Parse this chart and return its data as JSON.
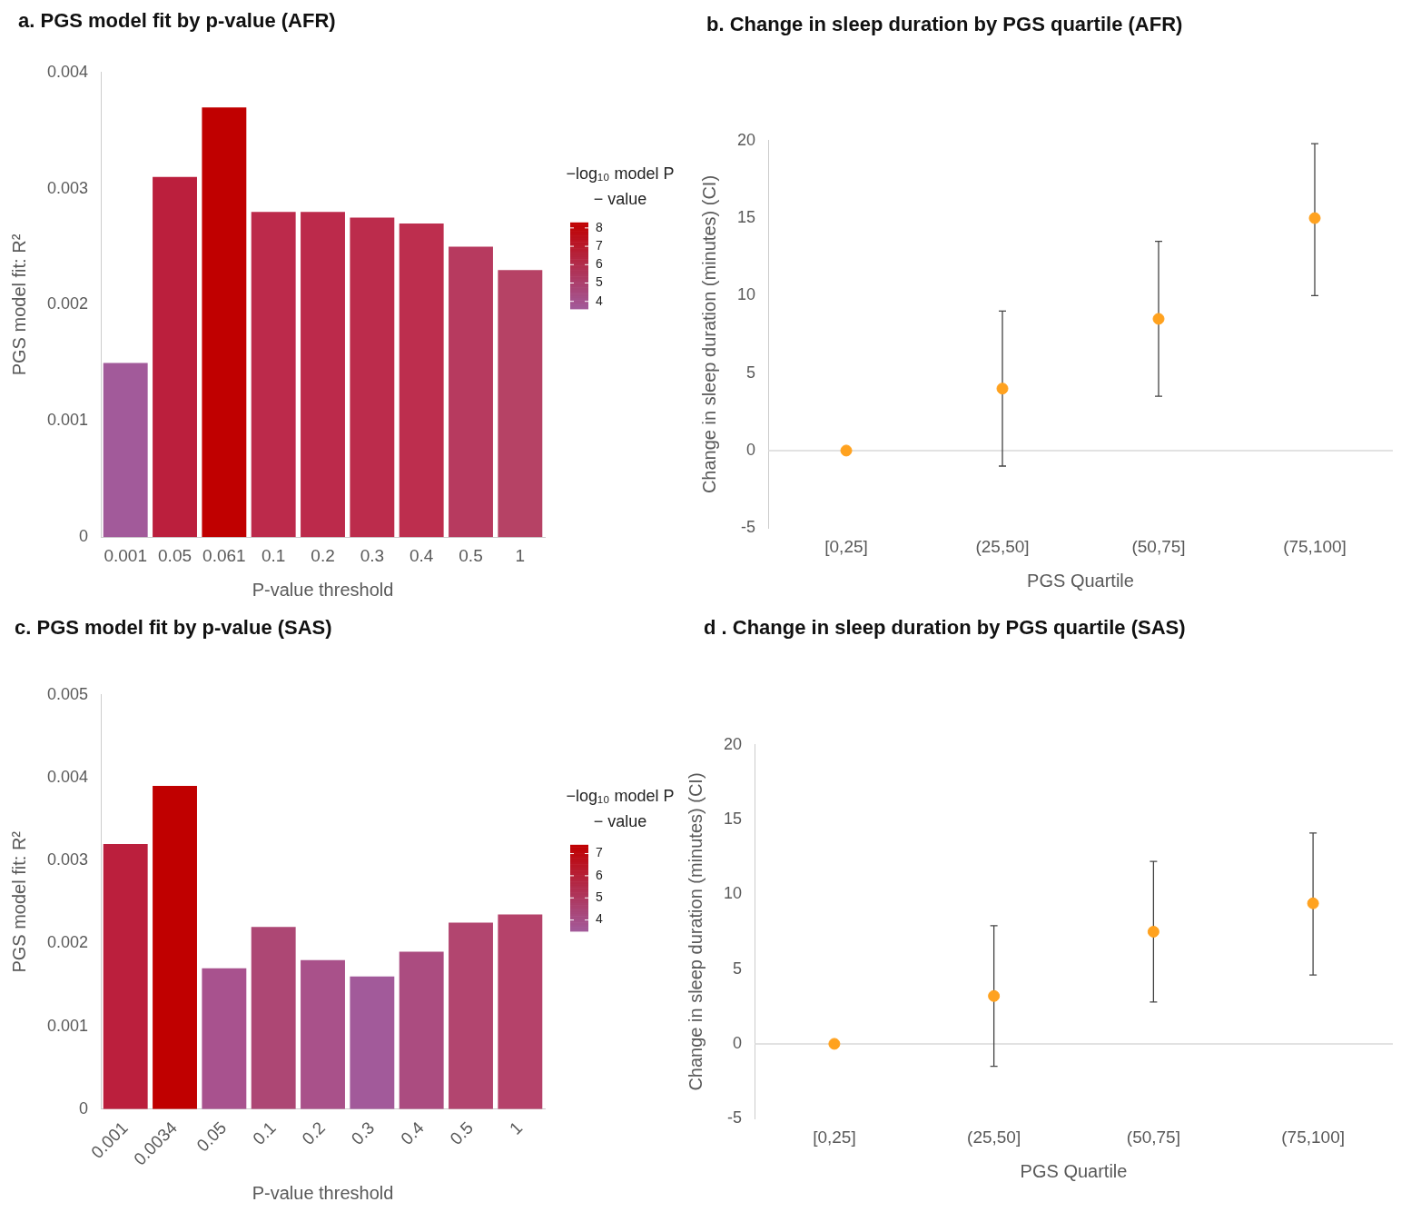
{
  "chart_data": [
    {
      "type": "bar",
      "title": "a. PGS model fit by p-value (AFR)",
      "xlabel": "P-value threshold",
      "ylabel": "PGS model fit: R²",
      "clabel": "−log₁₀ model P − value",
      "categories": [
        "0.001",
        "0.05",
        "0.061",
        "0.1",
        "0.2",
        "0.3",
        "0.4",
        "0.5",
        "1"
      ],
      "values": [
        0.0015,
        0.0031,
        0.0037,
        0.0028,
        0.0028,
        0.00275,
        0.0027,
        0.0025,
        0.0023
      ],
      "colors": [
        "#a25a9a",
        "#bb1f3d",
        "#c00000",
        "#bc2a4b",
        "#bc2a4b",
        "#bc2c4c",
        "#bd2e4e",
        "#b73a5f",
        "#b64265"
      ],
      "ylim": [
        0,
        0.004
      ],
      "yticks": [
        0,
        0.001,
        0.002,
        0.003,
        0.004
      ],
      "clim": [
        3.6,
        8.3
      ],
      "cticks": [
        4,
        5,
        6,
        7,
        8
      ],
      "grid": false,
      "legend": false
    },
    {
      "type": "scatter",
      "title": "b. Change in sleep duration by PGS quartile (AFR)",
      "xlabel": "PGS Quartile",
      "ylabel": "Change in sleep duration (minutes) (CI)",
      "categories": [
        "[0,25]",
        "(25,50]",
        "(50,75]",
        "(75,100]"
      ],
      "series": [
        {
          "color": "#ffa21f",
          "values": [
            0,
            4,
            8.5,
            15
          ],
          "errors": [
            null,
            [
              -1,
              9
            ],
            [
              3.5,
              13.5
            ],
            [
              10,
              19.8
            ]
          ]
        }
      ],
      "ylim": [
        -5,
        20
      ],
      "yticks": [
        -5,
        0,
        5,
        10,
        15,
        20
      ],
      "ref_lines": [
        {
          "axis": "y",
          "value": 0,
          "color": "#d9d9d9"
        }
      ],
      "marker": "circle",
      "grid": false,
      "legend": false
    },
    {
      "type": "bar",
      "title": "c. PGS model fit by p-value (SAS)",
      "xlabel": "P-value threshold",
      "ylabel": "PGS model fit: R²",
      "clabel": "−log₁₀ model P − value",
      "categories": [
        "0.001",
        "0.0034",
        "0.05",
        "0.1",
        "0.2",
        "0.3",
        "0.4",
        "0.5",
        "1"
      ],
      "values": [
        0.0032,
        0.0039,
        0.0017,
        0.0022,
        0.0018,
        0.0016,
        0.0019,
        0.00225,
        0.00235
      ],
      "colors": [
        "#bb1f3d",
        "#c00000",
        "#a8528e",
        "#ad4774",
        "#a9518a",
        "#a25a9a",
        "#ab4c80",
        "#b2456f",
        "#b5426a"
      ],
      "ylim": [
        0,
        0.005
      ],
      "yticks": [
        0,
        0.001,
        0.002,
        0.003,
        0.004,
        0.005
      ],
      "clim": [
        3.5,
        7.4
      ],
      "cticks": [
        4,
        5,
        6,
        7
      ],
      "grid": false,
      "legend": false
    },
    {
      "type": "scatter",
      "title": "d . Change in sleep duration by PGS quartile (SAS)",
      "xlabel": "PGS Quartile",
      "ylabel": "Change in sleep duration (minutes) (CI)",
      "categories": [
        "[0,25]",
        "(25,50]",
        "(50,75]",
        "(75,100]"
      ],
      "series": [
        {
          "color": "#ffa21f",
          "values": [
            0,
            3.2,
            7.5,
            9.4
          ],
          "errors": [
            null,
            [
              -1.5,
              7.9
            ],
            [
              2.8,
              12.2
            ],
            [
              4.6,
              14.1
            ]
          ]
        }
      ],
      "ylim": [
        -5,
        20
      ],
      "yticks": [
        -5,
        0,
        5,
        10,
        15,
        20
      ],
      "ref_lines": [
        {
          "axis": "y",
          "value": 0,
          "color": "#d9d9d9"
        }
      ],
      "marker": "circle",
      "grid": false,
      "legend": false
    }
  ]
}
